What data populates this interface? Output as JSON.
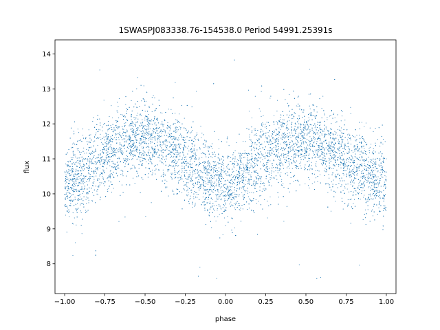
{
  "chart_data": {
    "type": "scatter",
    "title": "1SWASPJ083338.76-154538.0 Period 54991.25391s",
    "xlabel": "phase",
    "ylabel": "flux",
    "xlim": [
      -1.06,
      1.06
    ],
    "ylim": [
      7.15,
      14.4
    ],
    "x_ticks": [
      -1.0,
      -0.75,
      -0.5,
      -0.25,
      0.0,
      0.25,
      0.5,
      0.75,
      1.0
    ],
    "x_tick_labels": [
      "−1.00",
      "−0.75",
      "−0.50",
      "−0.25",
      "0.00",
      "0.25",
      "0.50",
      "0.75",
      "1.00"
    ],
    "y_ticks": [
      8,
      9,
      10,
      11,
      12,
      13,
      14
    ],
    "y_tick_labels": [
      "8",
      "9",
      "10",
      "11",
      "12",
      "13",
      "14"
    ],
    "grid": false,
    "legend": "none",
    "marker_color": "#1f77b4",
    "series": [
      {
        "trend_phase": [
          -1.0,
          -0.9,
          -0.8,
          -0.7,
          -0.6,
          -0.5,
          -0.4,
          -0.3,
          -0.2,
          -0.1,
          0.0,
          0.1,
          0.2,
          0.3,
          0.4,
          0.5,
          0.6,
          0.7,
          0.8,
          0.9,
          1.0
        ],
        "trend_flux": [
          10.3,
          10.5,
          10.9,
          11.3,
          11.5,
          11.6,
          11.4,
          11.1,
          10.7,
          10.4,
          10.2,
          10.4,
          10.9,
          11.3,
          11.5,
          11.6,
          11.4,
          11.1,
          10.8,
          10.5,
          10.3
        ],
        "scatter_sd": 0.55,
        "point_count": 9000
      }
    ]
  }
}
